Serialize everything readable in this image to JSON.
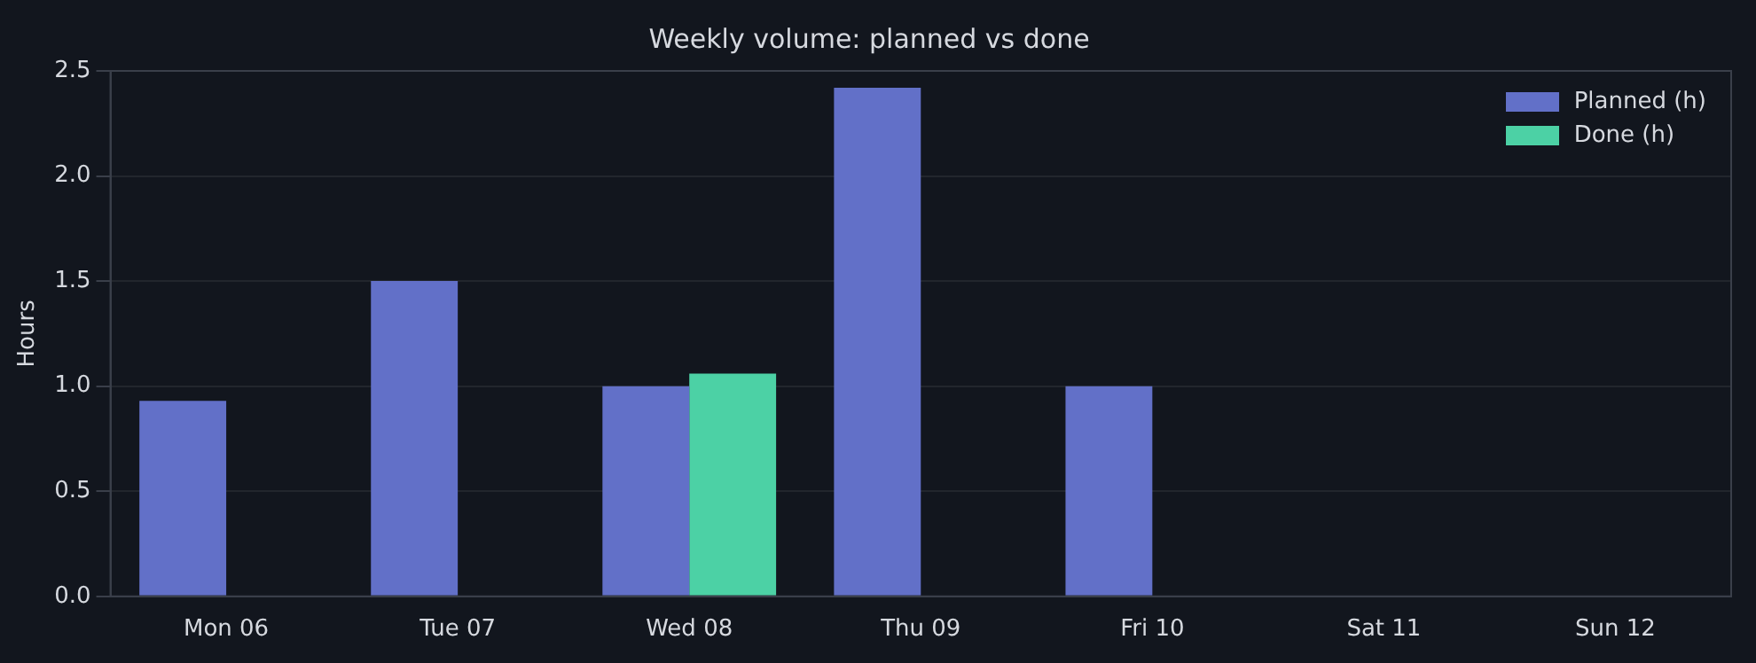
{
  "chart_data": {
    "type": "bar",
    "title": "Weekly volume: planned vs done",
    "ylabel": "Hours",
    "categories": [
      "Mon 06",
      "Tue 07",
      "Wed 08",
      "Thu 09",
      "Fri 10",
      "Sat 11",
      "Sun 12"
    ],
    "series": [
      {
        "name": "Planned (h)",
        "color": "#6270c8",
        "values": [
          0.93,
          1.5,
          1.0,
          2.42,
          1.0,
          0,
          0
        ]
      },
      {
        "name": "Done (h)",
        "color": "#4cd1a5",
        "values": [
          0,
          0,
          1.06,
          0,
          0,
          0,
          0
        ]
      }
    ],
    "ylim": [
      0,
      2.5
    ],
    "yticks": [
      {
        "value": 0,
        "label": "0.0"
      },
      0.5,
      {
        "value": 1,
        "label": "1.0"
      },
      1.5,
      {
        "value": 2,
        "label": "2.0"
      },
      2.5
    ],
    "grid": "y",
    "legend": "top right"
  }
}
